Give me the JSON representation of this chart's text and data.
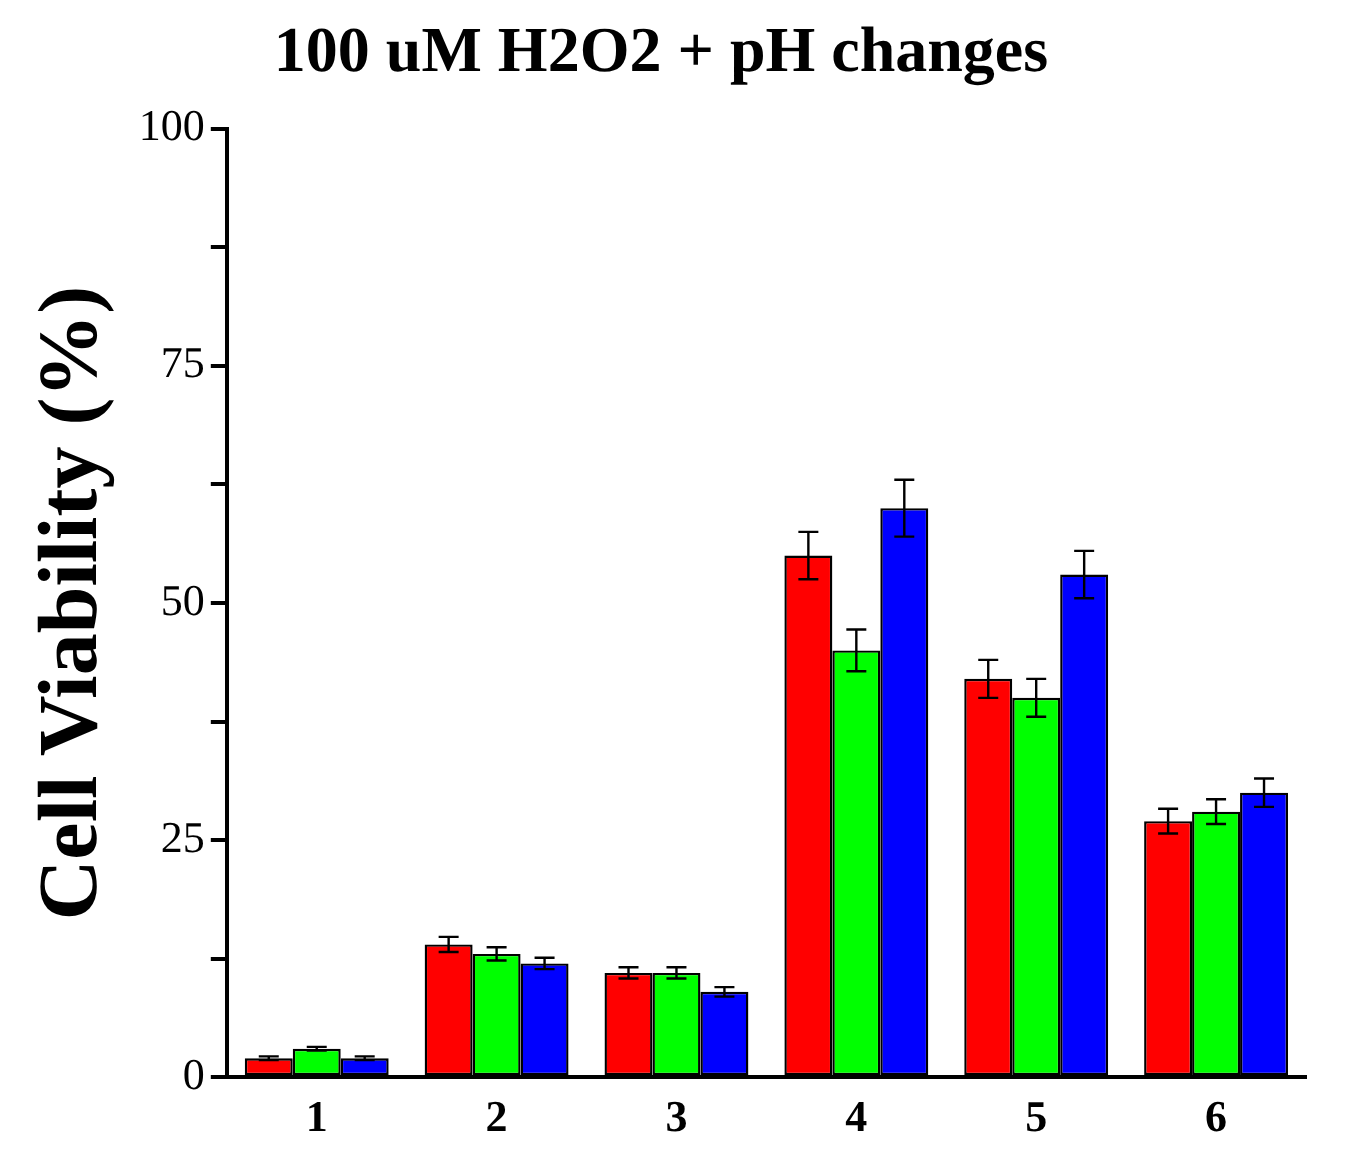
{
  "chart_data": {
    "type": "bar",
    "title": "100 uM H2O2 + pH changes",
    "ylabel": "Cell Viability (%)",
    "categories": [
      "1",
      "2",
      "3",
      "4",
      "5",
      "6"
    ],
    "series": [
      {
        "color": "#ff0000",
        "values": [
          2,
          14,
          11,
          55,
          42,
          27
        ],
        "errors": [
          0.2,
          0.8,
          0.6,
          2.5,
          2,
          1.3
        ]
      },
      {
        "color": "#00ff00",
        "values": [
          3,
          13,
          11,
          45,
          40,
          28
        ],
        "errors": [
          0.2,
          0.7,
          0.6,
          2.2,
          2,
          1.3
        ]
      },
      {
        "color": "#0000ff",
        "values": [
          2,
          12,
          9,
          60,
          53,
          30
        ],
        "errors": [
          0.2,
          0.6,
          0.5,
          3,
          2.5,
          1.5
        ]
      }
    ],
    "ylim": [
      0,
      100
    ],
    "yticks": [
      0,
      {
        "value": 12.5,
        "label": null
      },
      25,
      {
        "value": 37.5,
        "label": null
      },
      50,
      {
        "value": 62.5,
        "label": null
      },
      75,
      {
        "value": 87.5,
        "label": null
      },
      100
    ],
    "grid": false,
    "legend": false
  }
}
